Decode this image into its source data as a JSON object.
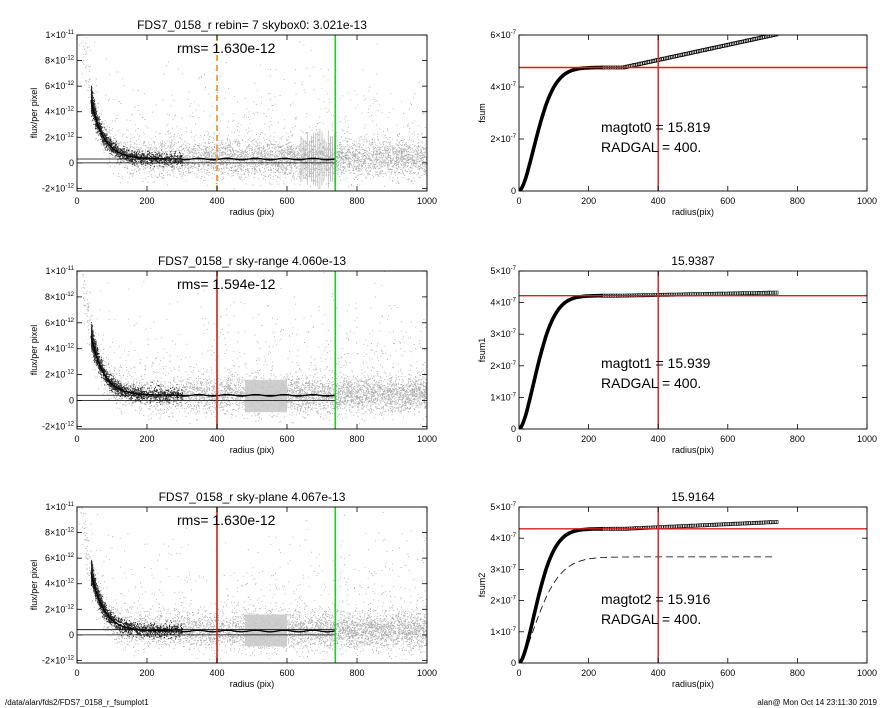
{
  "footer": {
    "path": "/data/alan/fds2/FDS7_0158_r_fsumplot1",
    "user_time": "alan@  Mon Oct 14 23:11:30 2019"
  },
  "colors": {
    "sky_points": "#aaaaaa",
    "profile": "#000000",
    "radius_line": "#d02020",
    "sky_line": "#22cc22",
    "rebin_line": "#e8902a"
  },
  "chart_data": [
    {
      "type": "scatter",
      "title": "FDS7_0158_r rebin= 7    skybox0:  3.021e-13",
      "annotation": "rms= 1.630e-12",
      "xlabel": "radius (pix)",
      "ylabel": "flux/per pixel",
      "xlim": [
        0,
        1000
      ],
      "ylim": [
        -2.2e-12,
        1e-11
      ],
      "xticks": [
        "0",
        "200",
        "400",
        "600",
        "800",
        "1000"
      ],
      "yticks": [
        {
          "v": 1e-11,
          "m": "1×10",
          "e": "-11"
        },
        {
          "v": 8e-12,
          "m": "8×10",
          "e": "-12"
        },
        {
          "v": 6e-12,
          "m": "6×10",
          "e": "-12"
        },
        {
          "v": 4e-12,
          "m": "4×10",
          "e": "-12"
        },
        {
          "v": 2e-12,
          "m": "2×10",
          "e": "-12"
        },
        {
          "v": 0,
          "m": "0",
          "e": ""
        },
        {
          "v": -2e-12,
          "m": "-2×10",
          "e": "-12"
        }
      ],
      "sky_levels": [
        3.021e-13,
        0
      ],
      "vlines": [
        {
          "x": 400,
          "style": "dashed",
          "color": "#e8902a"
        },
        {
          "x": 738,
          "style": "solid",
          "color": "#22cc22"
        }
      ],
      "profile": {
        "amplitude": 1.4e-11,
        "scale": 36,
        "start": 40,
        "end": 738
      },
      "scatter": {
        "sky_mean": 3e-13,
        "sky_sigma": 1.63e-12,
        "extent": 1000,
        "errorbars": [
          640,
          738
        ]
      }
    },
    {
      "type": "line",
      "title": "",
      "xlabel": "radius(pix)",
      "ylabel": "fsum",
      "xlim": [
        0,
        1000
      ],
      "ylim": [
        0,
        6e-07
      ],
      "xticks": [
        "0",
        "200",
        "400",
        "600",
        "800",
        "1000"
      ],
      "yticks": [
        {
          "v": 0,
          "m": "0",
          "e": ""
        },
        {
          "v": 2e-07,
          "m": "2×10",
          "e": "-7"
        },
        {
          "v": 4e-07,
          "m": "4×10",
          "e": "-7"
        },
        {
          "v": 6e-07,
          "m": "6×10",
          "e": "-7"
        }
      ],
      "annotations": [
        "magtot0 =  15.819",
        "RADGAL =    400."
      ],
      "crosshair": {
        "x": 400,
        "y": 4.75e-07
      },
      "curve": {
        "plateau": 4.75e-07,
        "scale": 70,
        "slope": 2.9e-10,
        "end": 740
      },
      "dashed_curve": null
    },
    {
      "type": "scatter",
      "title": "FDS7_0158_r sky-range  4.060e-13",
      "annotation": "rms= 1.594e-12",
      "xlabel": "radius (pix)",
      "ylabel": "flux/per pixel",
      "xlim": [
        0,
        1000
      ],
      "ylim": [
        -2.2e-12,
        1e-11
      ],
      "xticks": [
        "0",
        "200",
        "400",
        "600",
        "800",
        "1000"
      ],
      "yticks": [
        {
          "v": 1e-11,
          "m": "1×10",
          "e": "-11"
        },
        {
          "v": 8e-12,
          "m": "8×10",
          "e": "-12"
        },
        {
          "v": 6e-12,
          "m": "6×10",
          "e": "-12"
        },
        {
          "v": 4e-12,
          "m": "4×10",
          "e": "-12"
        },
        {
          "v": 2e-12,
          "m": "2×10",
          "e": "-12"
        },
        {
          "v": 0,
          "m": "0",
          "e": ""
        },
        {
          "v": -2e-12,
          "m": "-2×10",
          "e": "-12"
        }
      ],
      "sky_levels": [
        4.06e-13,
        0
      ],
      "vlines": [
        {
          "x": 400,
          "style": "solid",
          "color": "#d02020"
        },
        {
          "x": 738,
          "style": "solid",
          "color": "#22cc22"
        }
      ],
      "profile": {
        "amplitude": 1.4e-11,
        "scale": 36,
        "start": 40,
        "end": 738
      },
      "scatter": {
        "sky_mean": 4e-13,
        "sky_sigma": 1.59e-12,
        "extent": 1000,
        "band": [
          480,
          600
        ]
      }
    },
    {
      "type": "line",
      "title": "15.9387",
      "xlabel": "radius(pix)",
      "ylabel": "fsum1",
      "xlim": [
        0,
        1000
      ],
      "ylim": [
        0,
        5e-07
      ],
      "xticks": [
        "0",
        "200",
        "400",
        "600",
        "800",
        "1000"
      ],
      "yticks": [
        {
          "v": 0,
          "m": "0",
          "e": ""
        },
        {
          "v": 1e-07,
          "m": "1×10",
          "e": "-7"
        },
        {
          "v": 2e-07,
          "m": "2×10",
          "e": "-7"
        },
        {
          "v": 3e-07,
          "m": "3×10",
          "e": "-7"
        },
        {
          "v": 4e-07,
          "m": "4×10",
          "e": "-7"
        },
        {
          "v": 5e-07,
          "m": "5×10",
          "e": "-7"
        }
      ],
      "annotations": [
        "magtot1 =  15.939",
        "RADGAL =    400."
      ],
      "crosshair": {
        "x": 400,
        "y": 4.22e-07
      },
      "curve": {
        "plateau": 4.22e-07,
        "scale": 70,
        "slope": 2.2e-11,
        "end": 740
      },
      "dashed_curve": null
    },
    {
      "type": "scatter",
      "title": "FDS7_0158_r sky-plane  4.067e-13",
      "annotation": "rms= 1.630e-12",
      "xlabel": "radius (pix)",
      "ylabel": "flux/per pixel",
      "xlim": [
        0,
        1000
      ],
      "ylim": [
        -2.2e-12,
        1e-11
      ],
      "xticks": [
        "0",
        "200",
        "400",
        "600",
        "800",
        "1000"
      ],
      "yticks": [
        {
          "v": 1e-11,
          "m": "1×10",
          "e": "-11"
        },
        {
          "v": 8e-12,
          "m": "8×10",
          "e": "-12"
        },
        {
          "v": 6e-12,
          "m": "6×10",
          "e": "-12"
        },
        {
          "v": 4e-12,
          "m": "4×10",
          "e": "-12"
        },
        {
          "v": 2e-12,
          "m": "2×10",
          "e": "-12"
        },
        {
          "v": 0,
          "m": "0",
          "e": ""
        },
        {
          "v": -2e-12,
          "m": "-2×10",
          "e": "-12"
        }
      ],
      "sky_levels": [
        4.067e-13,
        0
      ],
      "vlines": [
        {
          "x": 400,
          "style": "solid",
          "color": "#d02020"
        },
        {
          "x": 738,
          "style": "solid",
          "color": "#22cc22"
        }
      ],
      "profile": {
        "amplitude": 1.4e-11,
        "scale": 36,
        "start": 40,
        "end": 738
      },
      "scatter": {
        "sky_mean": 3e-13,
        "sky_sigma": 1.63e-12,
        "extent": 1000,
        "band": [
          480,
          600
        ]
      }
    },
    {
      "type": "line",
      "title": "15.9164",
      "xlabel": "radius(pix)",
      "ylabel": "fsum2",
      "xlim": [
        0,
        1000
      ],
      "ylim": [
        0,
        5e-07
      ],
      "xticks": [
        "0",
        "200",
        "400",
        "600",
        "800",
        "1000"
      ],
      "yticks": [
        {
          "v": 0,
          "m": "0",
          "e": ""
        },
        {
          "v": 1e-07,
          "m": "1×10",
          "e": "-7"
        },
        {
          "v": 2e-07,
          "m": "2×10",
          "e": "-7"
        },
        {
          "v": 3e-07,
          "m": "3×10",
          "e": "-7"
        },
        {
          "v": 4e-07,
          "m": "4×10",
          "e": "-7"
        },
        {
          "v": 5e-07,
          "m": "5×10",
          "e": "-7"
        }
      ],
      "annotations": [
        "magtot2 =  15.916",
        "RADGAL =    400."
      ],
      "crosshair": {
        "x": 400,
        "y": 4.3e-07
      },
      "curve": {
        "plateau": 4.3e-07,
        "scale": 70,
        "slope": 5e-11,
        "end": 740
      },
      "dashed_curve": {
        "plateau": 3.4e-07,
        "scale": 80,
        "end": 730
      }
    }
  ]
}
